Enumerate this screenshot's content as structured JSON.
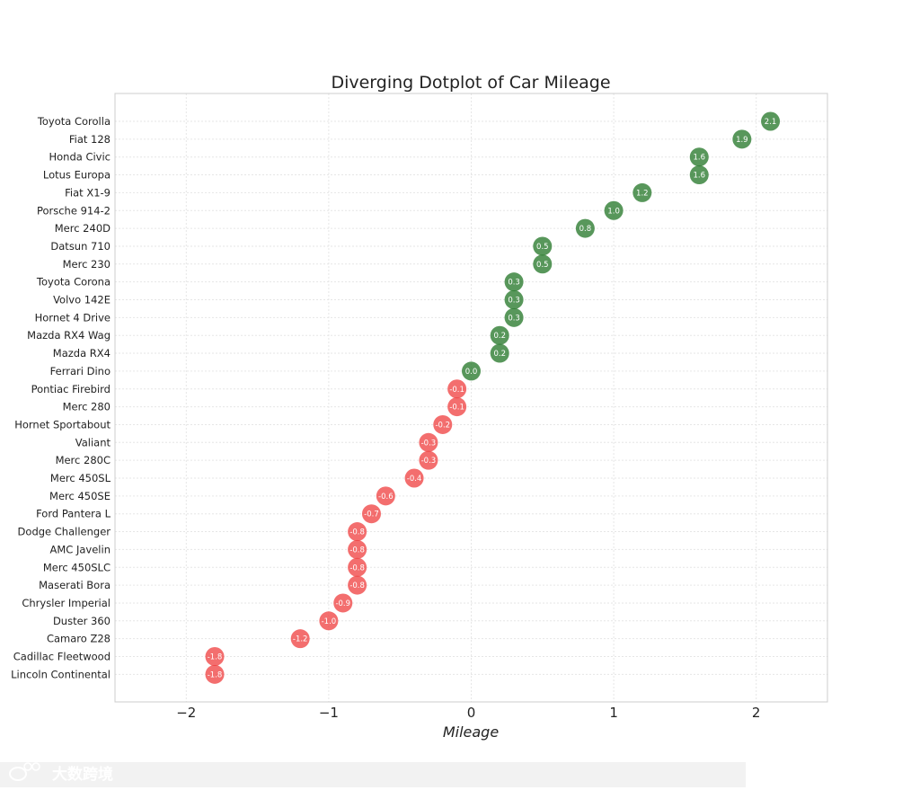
{
  "chart_data": {
    "type": "scatter",
    "title": "Diverging Dotplot of Car Mileage",
    "xlabel": "Mileage",
    "ylabel": "",
    "xlim": [
      -2.5,
      2.5
    ],
    "xticks": [
      -2,
      -1,
      0,
      1,
      2
    ],
    "xtick_labels": [
      "−2",
      "−1",
      "0",
      "1",
      "2"
    ],
    "grid": true,
    "positive_color": "#2e7d32",
    "negative_color": "#ef3e3e",
    "categories": [
      "Toyota Corolla",
      "Fiat 128",
      "Honda Civic",
      "Lotus Europa",
      "Fiat X1-9",
      "Porsche 914-2",
      "Merc 240D",
      "Datsun 710",
      "Merc 230",
      "Toyota Corona",
      "Volvo 142E",
      "Hornet 4 Drive",
      "Mazda RX4 Wag",
      "Mazda RX4",
      "Ferrari Dino",
      "Pontiac Firebird",
      "Merc 280",
      "Hornet Sportabout",
      "Valiant",
      "Merc 280C",
      "Merc 450SL",
      "Merc 450SE",
      "Ford Pantera L",
      "Dodge Challenger",
      "AMC Javelin",
      "Merc 450SLC",
      "Maserati Bora",
      "Chrysler Imperial",
      "Duster 360",
      "Camaro Z28",
      "Cadillac Fleetwood",
      "Lincoln Continental"
    ],
    "values": [
      2.1,
      1.9,
      1.6,
      1.6,
      1.2,
      1.0,
      0.8,
      0.5,
      0.5,
      0.3,
      0.3,
      0.3,
      0.2,
      0.2,
      0.0,
      -0.1,
      -0.1,
      -0.2,
      -0.3,
      -0.3,
      -0.4,
      -0.6,
      -0.7,
      -0.8,
      -0.8,
      -0.8,
      -0.8,
      -0.9,
      -1.0,
      -1.2,
      -1.8,
      -1.8
    ],
    "value_labels": [
      "2.1",
      "1.9",
      "1.6",
      "1.6",
      "1.2",
      "1.0",
      "0.8",
      "0.5",
      "0.5",
      "0.3",
      "0.3",
      "0.3",
      "0.2",
      "0.2",
      "0.0",
      "-0.1",
      "-0.1",
      "-0.2",
      "-0.3",
      "-0.3",
      "-0.4",
      "-0.6",
      "-0.7",
      "-0.8",
      "-0.8",
      "-0.8",
      "-0.8",
      "-0.9",
      "-1.0",
      "-1.2",
      "-1.8",
      "-1.8"
    ]
  },
  "watermark": {
    "text": "大数跨境",
    "icon": "weibo-logo-icon"
  }
}
